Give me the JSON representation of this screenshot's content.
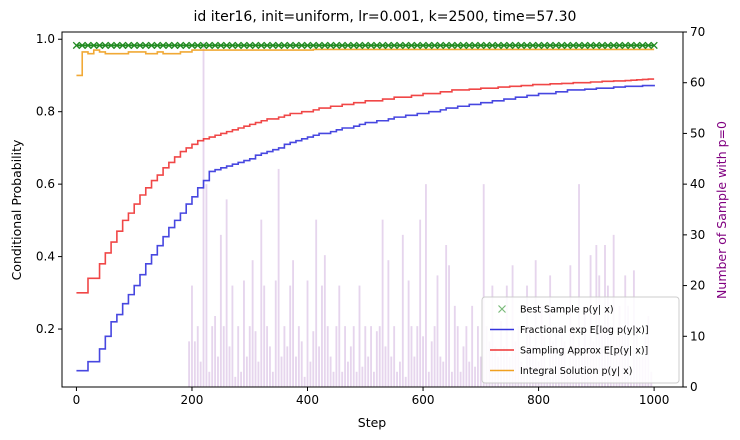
{
  "chart_data": {
    "type": "line",
    "title": "id iter16, init=uniform, lr=0.001, k=2500, time=57.30",
    "xlabel": "Step",
    "ylabel_left": "Conditional Probability",
    "ylabel_right": "Number of Sample with p=0",
    "xlim": [
      -25,
      1050
    ],
    "ylim_left": [
      0.04,
      1.02
    ],
    "ylim_right": [
      0,
      70
    ],
    "x_ticks": [
      0,
      200,
      400,
      600,
      800,
      1000
    ],
    "y_left_ticks": [
      0.2,
      0.4,
      0.6,
      0.8,
      1.0
    ],
    "y_right_ticks": [
      0,
      10,
      20,
      30,
      40,
      50,
      60,
      70
    ],
    "grid": false,
    "legend_placement": "lower-right",
    "colors": {
      "best": "#228b22",
      "fractional": "#3333dd",
      "sampling": "#ee3333",
      "integral": "#f0a020",
      "bars": "#b07cc6",
      "right_axis_label": "#800080"
    },
    "series": [
      {
        "key": "best",
        "name": "Best Sample $p(y\\mid x)$",
        "marker": "x",
        "x": [
          0,
          10,
          20,
          30,
          40,
          50,
          60,
          70,
          80,
          90,
          100,
          110,
          120,
          130,
          140,
          150,
          160,
          170,
          180,
          190,
          200,
          210,
          220,
          230,
          240,
          250,
          260,
          270,
          280,
          290,
          300,
          310,
          320,
          330,
          340,
          350,
          360,
          370,
          380,
          390,
          400,
          410,
          420,
          430,
          440,
          450,
          460,
          470,
          480,
          490,
          500,
          510,
          520,
          530,
          540,
          550,
          560,
          570,
          580,
          590,
          600,
          610,
          620,
          630,
          640,
          650,
          660,
          670,
          680,
          690,
          700,
          710,
          720,
          730,
          740,
          750,
          760,
          770,
          780,
          790,
          800,
          810,
          820,
          830,
          840,
          850,
          860,
          870,
          880,
          890,
          900,
          910,
          920,
          930,
          940,
          950,
          960,
          970,
          980,
          990,
          1000
        ],
        "y": [
          0.983,
          0.983,
          0.983,
          0.983,
          0.983,
          0.983,
          0.983,
          0.983,
          0.983,
          0.983,
          0.983,
          0.983,
          0.983,
          0.983,
          0.983,
          0.983,
          0.983,
          0.983,
          0.983,
          0.983,
          0.983,
          0.983,
          0.983,
          0.983,
          0.983,
          0.983,
          0.983,
          0.983,
          0.983,
          0.983,
          0.983,
          0.983,
          0.983,
          0.983,
          0.983,
          0.983,
          0.983,
          0.983,
          0.983,
          0.983,
          0.983,
          0.983,
          0.983,
          0.983,
          0.983,
          0.983,
          0.983,
          0.983,
          0.983,
          0.983,
          0.983,
          0.983,
          0.983,
          0.983,
          0.983,
          0.983,
          0.983,
          0.983,
          0.983,
          0.983,
          0.983,
          0.983,
          0.983,
          0.983,
          0.983,
          0.983,
          0.983,
          0.983,
          0.983,
          0.983,
          0.983,
          0.983,
          0.983,
          0.983,
          0.983,
          0.983,
          0.983,
          0.983,
          0.983,
          0.983,
          0.983,
          0.983,
          0.983,
          0.983,
          0.983,
          0.983,
          0.983,
          0.983,
          0.983,
          0.983,
          0.983,
          0.983,
          0.983,
          0.983,
          0.983,
          0.983,
          0.983,
          0.983,
          0.983,
          0.983,
          0.983
        ]
      },
      {
        "key": "fractional",
        "name": "Fractional $\\exp E[\\log p(y|x)]$",
        "x": [
          0,
          10,
          20,
          30,
          40,
          50,
          60,
          70,
          80,
          90,
          100,
          110,
          120,
          130,
          140,
          150,
          160,
          170,
          180,
          190,
          200,
          210,
          220,
          230,
          240,
          250,
          260,
          270,
          280,
          290,
          300,
          310,
          320,
          330,
          340,
          350,
          360,
          370,
          380,
          390,
          400,
          410,
          420,
          430,
          440,
          450,
          460,
          470,
          480,
          490,
          500,
          510,
          520,
          530,
          540,
          550,
          560,
          570,
          580,
          590,
          600,
          610,
          620,
          630,
          640,
          650,
          660,
          670,
          680,
          690,
          700,
          710,
          720,
          730,
          740,
          750,
          760,
          770,
          780,
          790,
          800,
          810,
          820,
          830,
          840,
          850,
          860,
          870,
          880,
          890,
          900,
          910,
          920,
          930,
          940,
          950,
          960,
          970,
          980,
          990,
          1000
        ],
        "y": [
          0.085,
          0.085,
          0.11,
          0.11,
          0.145,
          0.18,
          0.22,
          0.24,
          0.27,
          0.295,
          0.32,
          0.35,
          0.38,
          0.405,
          0.43,
          0.455,
          0.48,
          0.5,
          0.52,
          0.545,
          0.565,
          0.59,
          0.61,
          0.635,
          0.64,
          0.645,
          0.65,
          0.655,
          0.66,
          0.665,
          0.67,
          0.68,
          0.685,
          0.69,
          0.695,
          0.7,
          0.71,
          0.715,
          0.72,
          0.725,
          0.73,
          0.735,
          0.74,
          0.74,
          0.745,
          0.75,
          0.755,
          0.755,
          0.76,
          0.765,
          0.77,
          0.77,
          0.775,
          0.775,
          0.78,
          0.785,
          0.785,
          0.79,
          0.79,
          0.795,
          0.795,
          0.8,
          0.8,
          0.805,
          0.81,
          0.81,
          0.815,
          0.815,
          0.82,
          0.82,
          0.825,
          0.825,
          0.83,
          0.83,
          0.835,
          0.835,
          0.84,
          0.84,
          0.845,
          0.845,
          0.85,
          0.85,
          0.85,
          0.855,
          0.855,
          0.86,
          0.86,
          0.86,
          0.862,
          0.862,
          0.865,
          0.865,
          0.865,
          0.868,
          0.868,
          0.87,
          0.87,
          0.87,
          0.872,
          0.872,
          0.87
        ]
      },
      {
        "key": "sampling",
        "name": "Sampling Approx $E[p(y\\mid x)]$",
        "x": [
          0,
          10,
          20,
          30,
          40,
          50,
          60,
          70,
          80,
          90,
          100,
          110,
          120,
          130,
          140,
          150,
          160,
          170,
          180,
          190,
          200,
          210,
          220,
          230,
          240,
          250,
          260,
          270,
          280,
          290,
          300,
          310,
          320,
          330,
          340,
          350,
          360,
          370,
          380,
          390,
          400,
          410,
          420,
          430,
          440,
          450,
          460,
          470,
          480,
          490,
          500,
          510,
          520,
          530,
          540,
          550,
          560,
          570,
          580,
          590,
          600,
          610,
          620,
          630,
          640,
          650,
          660,
          670,
          680,
          690,
          700,
          710,
          720,
          730,
          740,
          750,
          760,
          770,
          780,
          790,
          800,
          810,
          820,
          830,
          840,
          850,
          860,
          870,
          880,
          890,
          900,
          910,
          920,
          930,
          940,
          950,
          960,
          970,
          980,
          990,
          1000
        ],
        "y": [
          0.3,
          0.3,
          0.34,
          0.34,
          0.38,
          0.41,
          0.44,
          0.47,
          0.5,
          0.52,
          0.545,
          0.57,
          0.59,
          0.61,
          0.625,
          0.645,
          0.66,
          0.675,
          0.69,
          0.7,
          0.71,
          0.72,
          0.725,
          0.73,
          0.735,
          0.74,
          0.745,
          0.75,
          0.755,
          0.76,
          0.765,
          0.77,
          0.775,
          0.78,
          0.78,
          0.785,
          0.79,
          0.795,
          0.795,
          0.8,
          0.8,
          0.805,
          0.81,
          0.81,
          0.815,
          0.815,
          0.82,
          0.82,
          0.825,
          0.825,
          0.83,
          0.83,
          0.83,
          0.835,
          0.835,
          0.84,
          0.84,
          0.84,
          0.845,
          0.845,
          0.85,
          0.85,
          0.85,
          0.855,
          0.855,
          0.86,
          0.86,
          0.86,
          0.862,
          0.862,
          0.865,
          0.865,
          0.865,
          0.868,
          0.868,
          0.87,
          0.87,
          0.872,
          0.872,
          0.875,
          0.875,
          0.875,
          0.877,
          0.877,
          0.878,
          0.878,
          0.88,
          0.88,
          0.88,
          0.882,
          0.882,
          0.884,
          0.884,
          0.885,
          0.885,
          0.886,
          0.887,
          0.888,
          0.889,
          0.89,
          0.89
        ]
      },
      {
        "key": "integral",
        "name": "Integral Solution $p(y\\mid x)$",
        "x": [
          0,
          10,
          20,
          30,
          40,
          50,
          60,
          70,
          80,
          90,
          100,
          110,
          120,
          130,
          140,
          150,
          160,
          170,
          180,
          190,
          200,
          210,
          220,
          230,
          240,
          250,
          260,
          270,
          280,
          290,
          300,
          310,
          320,
          330,
          340,
          350,
          360,
          370,
          380,
          390,
          400,
          410,
          420,
          430,
          440,
          450,
          460,
          470,
          480,
          490,
          500,
          510,
          520,
          530,
          540,
          550,
          560,
          570,
          580,
          590,
          600,
          610,
          620,
          630,
          640,
          650,
          660,
          670,
          680,
          690,
          700,
          710,
          720,
          730,
          740,
          750,
          760,
          770,
          780,
          790,
          800,
          810,
          820,
          830,
          840,
          850,
          860,
          870,
          880,
          890,
          900,
          910,
          920,
          930,
          940,
          950,
          960,
          970,
          980,
          990,
          1000
        ],
        "y": [
          0.9,
          0.965,
          0.96,
          0.97,
          0.965,
          0.96,
          0.96,
          0.96,
          0.96,
          0.965,
          0.965,
          0.965,
          0.96,
          0.96,
          0.965,
          0.96,
          0.96,
          0.96,
          0.965,
          0.965,
          0.97,
          0.97,
          0.97,
          0.97,
          0.97,
          0.97,
          0.97,
          0.97,
          0.97,
          0.97,
          0.97,
          0.97,
          0.97,
          0.97,
          0.97,
          0.97,
          0.97,
          0.97,
          0.97,
          0.97,
          0.97,
          0.972,
          0.972,
          0.972,
          0.972,
          0.972,
          0.972,
          0.972,
          0.972,
          0.972,
          0.972,
          0.972,
          0.972,
          0.972,
          0.972,
          0.972,
          0.972,
          0.972,
          0.972,
          0.972,
          0.972,
          0.972,
          0.972,
          0.972,
          0.972,
          0.972,
          0.972,
          0.972,
          0.972,
          0.972,
          0.972,
          0.972,
          0.972,
          0.972,
          0.972,
          0.972,
          0.972,
          0.972,
          0.972,
          0.972,
          0.972,
          0.972,
          0.972,
          0.972,
          0.972,
          0.972,
          0.972,
          0.972,
          0.972,
          0.972,
          0.972,
          0.972,
          0.972,
          0.972,
          0.972,
          0.972,
          0.972,
          0.972,
          0.972,
          0.972,
          0.972
        ]
      }
    ],
    "bars": {
      "name": "Number of Sample with p=0",
      "axis": "right",
      "x": [
        195,
        200,
        205,
        210,
        215,
        220,
        225,
        230,
        235,
        240,
        245,
        250,
        255,
        260,
        265,
        270,
        275,
        280,
        285,
        290,
        295,
        300,
        305,
        310,
        315,
        320,
        325,
        330,
        335,
        340,
        345,
        350,
        355,
        360,
        365,
        370,
        375,
        380,
        385,
        390,
        395,
        400,
        405,
        410,
        415,
        420,
        425,
        430,
        435,
        440,
        445,
        450,
        455,
        460,
        465,
        470,
        475,
        480,
        485,
        490,
        495,
        500,
        505,
        510,
        515,
        520,
        525,
        530,
        535,
        540,
        545,
        550,
        555,
        560,
        565,
        570,
        575,
        580,
        585,
        590,
        595,
        600,
        605,
        610,
        615,
        620,
        625,
        630,
        635,
        640,
        645,
        650,
        655,
        660,
        665,
        670,
        675,
        680,
        685,
        690,
        695,
        700,
        705,
        710,
        715,
        720,
        725,
        730,
        735,
        740,
        745,
        750,
        755,
        760,
        765,
        770,
        775,
        780,
        785,
        790,
        795,
        800,
        805,
        810,
        815,
        820,
        825,
        830,
        835,
        840,
        845,
        850,
        855,
        860,
        865,
        870,
        875,
        880,
        885,
        890,
        895,
        900,
        905,
        910,
        915,
        920,
        925,
        930,
        935,
        940,
        945,
        950,
        955,
        960,
        965,
        970,
        975,
        980,
        985,
        990,
        995
      ],
      "values": [
        9,
        20,
        9,
        12,
        5,
        68,
        40,
        3,
        12,
        14,
        6,
        30,
        12,
        37,
        8,
        20,
        2,
        12,
        3,
        21,
        6,
        12,
        25,
        11,
        5,
        33,
        20,
        12,
        8,
        3,
        21,
        43,
        6,
        12,
        8,
        20,
        25,
        6,
        12,
        9,
        2,
        21,
        5,
        11,
        33,
        8,
        20,
        26,
        12,
        6,
        3,
        12,
        20,
        3,
        12,
        5,
        8,
        12,
        3,
        20,
        4,
        12,
        6,
        12,
        3,
        11,
        12,
        33,
        8,
        25,
        6,
        12,
        3,
        5,
        30,
        2,
        21,
        12,
        6,
        12,
        33,
        10,
        40,
        3,
        9,
        12,
        22,
        6,
        5,
        28,
        24,
        3,
        16,
        12,
        3,
        8,
        12,
        5,
        16,
        4,
        12,
        6,
        40,
        12,
        9,
        20,
        8,
        6,
        13,
        8,
        20,
        6,
        24,
        9,
        12,
        5,
        4,
        20,
        12,
        8,
        25,
        5,
        16,
        10,
        3,
        22,
        9,
        12,
        6,
        12,
        9,
        3,
        24,
        12,
        8,
        40,
        6,
        16,
        6,
        26,
        9,
        28,
        22,
        12,
        28,
        20,
        12,
        30,
        10,
        16,
        12,
        22,
        16,
        3,
        23,
        12,
        6,
        6,
        10,
        14,
        3
      ]
    }
  }
}
